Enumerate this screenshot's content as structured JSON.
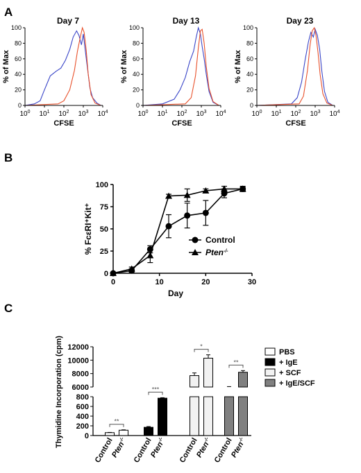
{
  "panels": {
    "a": "A",
    "b": "B",
    "c": "C"
  },
  "chart_data": [
    {
      "panel": "A",
      "type": "line",
      "title": "Day 7",
      "xlabel": "CFSE",
      "ylabel": "% of Max",
      "xscale": "log",
      "xlim": [
        1,
        10000
      ],
      "ylim": [
        0,
        100
      ],
      "xticks": [
        "10^0",
        "10^1",
        "10^2",
        "10^3",
        "10^4"
      ],
      "yticks": [
        0,
        20,
        40,
        60,
        80,
        100
      ],
      "series": [
        {
          "color": "#3a46c8",
          "x": [
            1,
            3,
            6,
            10,
            20,
            40,
            70,
            120,
            200,
            300,
            450,
            600,
            800,
            1000,
            1300,
            1600,
            2200,
            3000,
            5000,
            8000
          ],
          "y": [
            0,
            2,
            6,
            20,
            38,
            44,
            48,
            58,
            72,
            88,
            96,
            90,
            78,
            92,
            68,
            50,
            22,
            10,
            3,
            0
          ]
        },
        {
          "color": "#e8502a",
          "x": [
            1,
            50,
            100,
            200,
            350,
            500,
            700,
            900,
            1100,
            1400,
            1800,
            2500,
            4000,
            8000
          ],
          "y": [
            0,
            2,
            6,
            20,
            45,
            70,
            88,
            100,
            94,
            72,
            40,
            14,
            3,
            0
          ]
        }
      ]
    },
    {
      "panel": "A",
      "type": "line",
      "title": "Day 13",
      "xlabel": "CFSE",
      "ylabel": "% of Max",
      "xscale": "log",
      "xlim": [
        1,
        10000
      ],
      "ylim": [
        0,
        100
      ],
      "xticks": [
        "10^0",
        "10^1",
        "10^2",
        "10^3",
        "10^4"
      ],
      "yticks": [
        0,
        20,
        40,
        60,
        80,
        100
      ],
      "series": [
        {
          "color": "#3a46c8",
          "x": [
            1,
            10,
            40,
            80,
            150,
            250,
            400,
            550,
            700,
            900,
            1100,
            1400,
            1800,
            2500,
            4000,
            8000
          ],
          "y": [
            0,
            2,
            8,
            20,
            36,
            56,
            70,
            88,
            100,
            92,
            76,
            60,
            40,
            18,
            4,
            0
          ]
        },
        {
          "color": "#e8502a",
          "x": [
            1,
            150,
            300,
            500,
            700,
            900,
            1100,
            1400,
            1800,
            2500,
            4000,
            8000
          ],
          "y": [
            0,
            2,
            10,
            38,
            74,
            96,
            98,
            80,
            50,
            22,
            5,
            0
          ]
        }
      ]
    },
    {
      "panel": "A",
      "type": "line",
      "title": "Day 23",
      "xlabel": "CFSE",
      "ylabel": "% of Max",
      "xscale": "log",
      "xlim": [
        1,
        10000
      ],
      "ylim": [
        0,
        100
      ],
      "xticks": [
        "10^0",
        "10^1",
        "10^2",
        "10^3",
        "10^4"
      ],
      "yticks": [
        0,
        20,
        40,
        60,
        80,
        100
      ],
      "series": [
        {
          "color": "#3a46c8",
          "x": [
            1,
            60,
            120,
            200,
            300,
            450,
            600,
            800,
            1000,
            1300,
            1700,
            2200,
            3000,
            4500,
            8000
          ],
          "y": [
            0,
            2,
            10,
            30,
            58,
            82,
            94,
            88,
            98,
            90,
            72,
            44,
            18,
            4,
            0
          ]
        },
        {
          "color": "#e8502a",
          "x": [
            1,
            150,
            250,
            400,
            550,
            700,
            900,
            1100,
            1400,
            1800,
            2500,
            4000,
            8000
          ],
          "y": [
            0,
            2,
            12,
            45,
            78,
            96,
            100,
            90,
            68,
            40,
            15,
            3,
            0
          ]
        }
      ]
    },
    {
      "panel": "B",
      "type": "line",
      "xlabel": "Day",
      "ylabel": "% FcεRI⁺Kit⁺",
      "xlim": [
        0,
        30
      ],
      "ylim": [
        0,
        100
      ],
      "xticks": [
        0,
        10,
        20,
        30
      ],
      "yticks": [
        0,
        25,
        50,
        75,
        100
      ],
      "legend": "right",
      "series": [
        {
          "name": "Control",
          "marker": "circle",
          "x": [
            0,
            4,
            8,
            12,
            16,
            20,
            24,
            28
          ],
          "y": [
            0,
            3,
            27,
            53,
            65,
            68,
            90,
            95
          ],
          "err": [
            1,
            2,
            4,
            13,
            14,
            14,
            5,
            3
          ]
        },
        {
          "name": "Pten⁻/⁻",
          "marker": "triangle",
          "x": [
            0,
            4,
            8,
            12,
            16,
            20,
            24,
            28
          ],
          "y": [
            0,
            5,
            20,
            87,
            88,
            93,
            95,
            95
          ],
          "err": [
            1,
            2,
            8,
            2,
            7,
            2,
            3,
            2
          ]
        }
      ]
    },
    {
      "panel": "C",
      "type": "bar",
      "ylabel": "Thymidine Incorporation (cpm)",
      "axis_break": true,
      "yticks_lower": [
        0,
        200,
        400,
        600,
        800
      ],
      "yticks_upper": [
        6000,
        8000,
        10000,
        12000
      ],
      "legend": "right",
      "legend_entries": [
        {
          "label": "PBS",
          "color": "#ffffff"
        },
        {
          "label": "+ IgE",
          "color": "#000000"
        },
        {
          "label": "+ SCF",
          "color": "#f2f2f2"
        },
        {
          "label": "+ IgE/SCF",
          "color": "#808080"
        }
      ],
      "groups": [
        {
          "treatment": "PBS",
          "categories": [
            "Control",
            "Pten⁻/⁻"
          ],
          "values": [
            60,
            110
          ],
          "err": [
            5,
            8
          ],
          "significance": "**",
          "fill": "#ffffff"
        },
        {
          "treatment": "+ IgE",
          "categories": [
            "Control",
            "Pten⁻/⁻"
          ],
          "values": [
            170,
            770
          ],
          "err": [
            15,
            10
          ],
          "significance": "***",
          "fill": "#000000"
        },
        {
          "treatment": "+ SCF",
          "categories": [
            "Control",
            "Pten⁻/⁻"
          ],
          "values": [
            7700,
            10300
          ],
          "err": [
            400,
            500
          ],
          "significance": "*",
          "fill": "#f2f2f2"
        },
        {
          "treatment": "+ IgE/SCF",
          "categories": [
            "Control",
            "Pten⁻/⁻"
          ],
          "values": [
            6000,
            8200
          ],
          "err": [
            60,
            250
          ],
          "significance": "**",
          "fill": "#808080"
        }
      ]
    }
  ]
}
